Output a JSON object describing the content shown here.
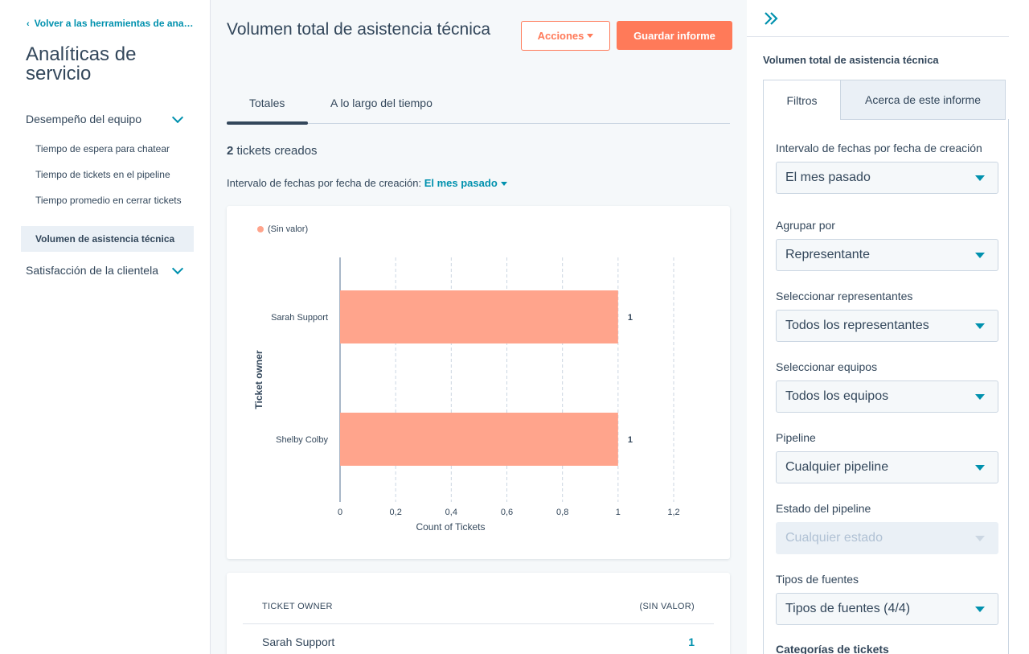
{
  "sidebar": {
    "back_link": "Volver a las herramientas de analíticas",
    "title": "Analíticas de servicio",
    "groups": [
      {
        "label": "Desempeño del equipo"
      },
      {
        "label": "Satisfacción de la clientela"
      }
    ],
    "items": [
      {
        "label": "Tiempo de espera para chatear"
      },
      {
        "label": "Tiempo de tickets en el pipeline"
      },
      {
        "label": "Tiempo promedio en cerrar tickets"
      },
      {
        "label": "Volumen de asistencia técnica"
      }
    ]
  },
  "header": {
    "title": "Volumen total de asistencia técnica",
    "actions_label": "Acciones",
    "save_label": "Guardar informe"
  },
  "tabs": [
    {
      "label": "Totales"
    },
    {
      "label": "A lo largo del tiempo"
    }
  ],
  "summary": {
    "count": "2",
    "count_suffix": "tickets creados",
    "range_label": "Intervalo de fechas por fecha de creación:",
    "range_value": "El mes pasado"
  },
  "chart_data": {
    "type": "bar",
    "orientation": "horizontal",
    "categories": [
      "Sarah Support",
      "Shelby Colby"
    ],
    "series": [
      {
        "name": "(Sin valor)",
        "values": [
          1,
          1
        ]
      }
    ],
    "xlabel": "Count of Tickets",
    "ylabel": "Ticket owner",
    "xlim": [
      0,
      1.2
    ],
    "xticks": [
      "0",
      "0,2",
      "0,4",
      "0,6",
      "0,8",
      "1",
      "1,2"
    ],
    "data_labels": [
      "1",
      "1"
    ],
    "legend_position": "top-left",
    "grid": true,
    "bar_color": "#ffa48c"
  },
  "table": {
    "headers": [
      "TICKET OWNER",
      "(SIN VALOR)"
    ],
    "rows": [
      {
        "owner": "Sarah Support",
        "value": "1"
      }
    ]
  },
  "panel": {
    "collapse_icon": "double-chevron-right-icon",
    "title": "Volumen total de asistencia técnica",
    "tabs": [
      {
        "label": "Filtros"
      },
      {
        "label": "Acerca de este informe"
      }
    ],
    "filters": [
      {
        "label": "Intervalo de fechas por fecha de creación",
        "value": "El mes pasado"
      },
      {
        "label": "Agrupar por",
        "value": "Representante"
      },
      {
        "label": "Seleccionar representantes",
        "value": "Todos los representantes"
      },
      {
        "label": "Seleccionar equipos",
        "value": "Todos los equipos"
      },
      {
        "label": "Pipeline",
        "value": "Cualquier pipeline"
      },
      {
        "label": "Estado del pipeline",
        "value": "Cualquier estado"
      },
      {
        "label": "Tipos de fuentes",
        "value": "Tipos de fuentes (4/4)"
      },
      {
        "label": "Categorías de tickets"
      }
    ]
  },
  "colors": {
    "accent": "#ff7a59",
    "link": "#0091ae",
    "text": "#33475b",
    "bar": "#ffa48c"
  }
}
